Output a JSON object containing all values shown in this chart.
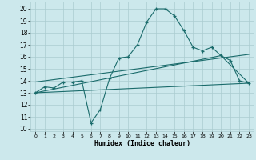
{
  "xlabel": "Humidex (Indice chaleur)",
  "bg_color": "#cce8ec",
  "grid_color": "#aaccd0",
  "line_color": "#1a6b6b",
  "x_ticks": [
    0,
    1,
    2,
    3,
    4,
    5,
    6,
    7,
    8,
    9,
    10,
    11,
    12,
    13,
    14,
    15,
    16,
    17,
    18,
    19,
    20,
    21,
    22,
    23
  ],
  "y_ticks": [
    10,
    11,
    12,
    13,
    14,
    15,
    16,
    17,
    18,
    19,
    20
  ],
  "ylim": [
    9.8,
    20.6
  ],
  "xlim": [
    -0.5,
    23.5
  ],
  "line1_x": [
    0,
    1,
    2,
    3,
    4,
    5,
    6,
    7,
    8,
    9,
    10,
    11,
    12,
    13,
    14,
    15,
    16,
    17,
    18,
    19,
    20,
    21,
    22,
    23
  ],
  "line1_y": [
    13.0,
    13.5,
    13.4,
    13.9,
    13.9,
    14.0,
    10.5,
    11.6,
    14.2,
    15.9,
    16.0,
    17.0,
    18.9,
    20.0,
    20.0,
    19.4,
    18.2,
    16.8,
    16.5,
    16.8,
    16.1,
    15.7,
    14.0,
    13.8
  ],
  "line2_x": [
    0,
    23
  ],
  "line2_y": [
    13.0,
    13.8
  ],
  "line3_x": [
    0,
    20,
    23
  ],
  "line3_y": [
    13.0,
    16.1,
    13.8
  ],
  "line4_x": [
    0,
    23
  ],
  "line4_y": [
    13.9,
    16.2
  ]
}
